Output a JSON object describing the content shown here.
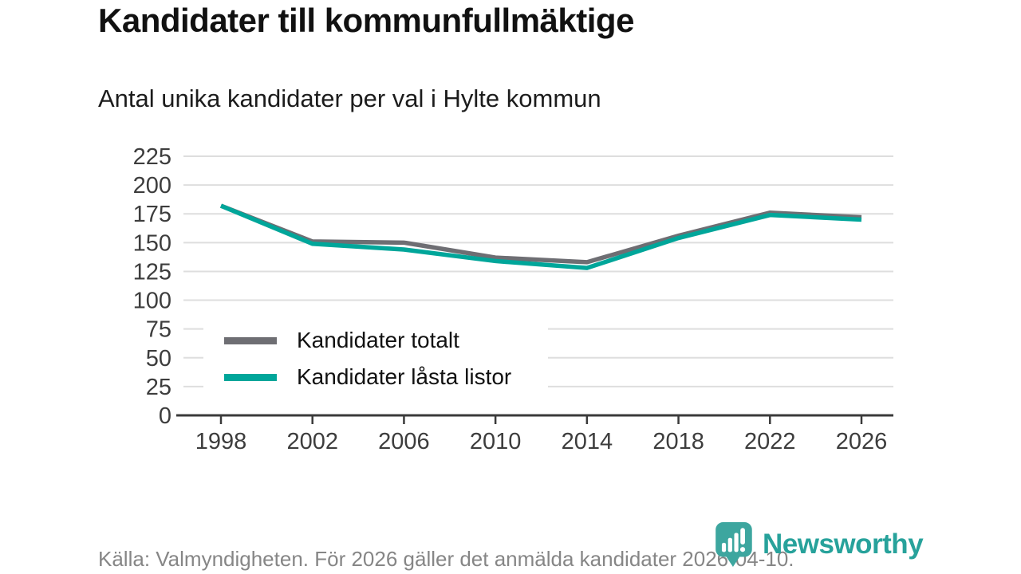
{
  "header": {
    "title": "Kandidater till kommunfullmäktige",
    "subtitle": "Antal unika kandidater per val i Hylte kommun"
  },
  "chart_data": {
    "type": "line",
    "title": "Kandidater till kommunfullmäktige",
    "subtitle": "Antal unika kandidater per val i Hylte kommun",
    "categories": [
      "1998",
      "2002",
      "2006",
      "2010",
      "2014",
      "2018",
      "2022",
      "2026"
    ],
    "series": [
      {
        "name": "Kandidater totalt",
        "color": "#6e6e73",
        "values": [
          182,
          151,
          150,
          137,
          133,
          156,
          176,
          172
        ]
      },
      {
        "name": "Kandidater låsta listor",
        "color": "#00a69a",
        "values": [
          182,
          149,
          144,
          134,
          128,
          154,
          174,
          170
        ]
      }
    ],
    "xlabel": "",
    "ylabel": "",
    "ylim": [
      0,
      225
    ],
    "yticks": [
      0,
      25,
      50,
      75,
      100,
      125,
      150,
      175,
      200,
      225
    ],
    "grid": true,
    "legend_position": "inside-bottom-left"
  },
  "footer": {
    "source": "Källa: Valmyndigheten. För 2026 gäller det anmälda kandidater 2026-04-10.",
    "logo_text": "Newsworthy"
  },
  "colors": {
    "grid": "#dedede",
    "axis": "#3a3a3a",
    "tick_label": "#3d3d3d",
    "accent_teal": "#00a69a",
    "series_gray": "#6e6e73",
    "logo_teal": "#3da69f",
    "logo_text_teal": "#27a29b",
    "muted_text": "#868686"
  }
}
